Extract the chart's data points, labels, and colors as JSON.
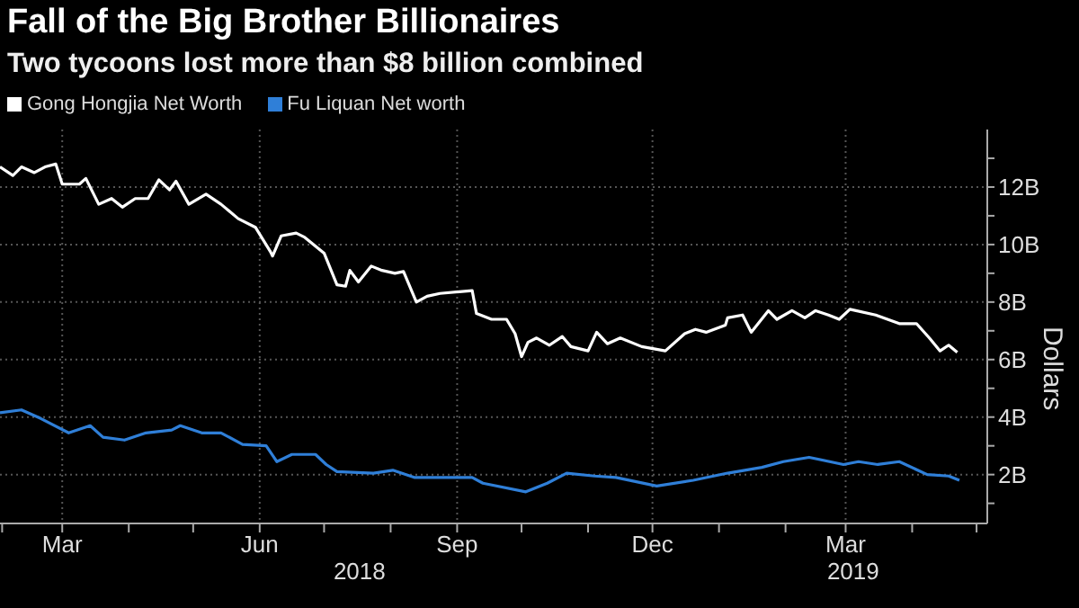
{
  "chart_data": {
    "type": "line",
    "title": "Fall of the Big Brother Billionaires",
    "subtitle": "Two tycoons lost more than $8 billion combined",
    "ylabel": "Dollars",
    "legend": "top left",
    "grid": true,
    "marker": "none",
    "line_style": "solid",
    "xlim": [
      "2018-01-31",
      "2019-05-06"
    ],
    "xticks": [
      {
        "value": "2018-02-01",
        "label": null
      },
      {
        "value": "2018-03-01",
        "label": "Mar"
      },
      {
        "value": "2018-04-01",
        "label": null
      },
      {
        "value": "2018-05-01",
        "label": null
      },
      {
        "value": "2018-06-01",
        "label": "Jun"
      },
      {
        "value": "2018-07-01",
        "label": null
      },
      {
        "value": "2018-08-01",
        "label": null
      },
      {
        "value": "2018-09-01",
        "label": "Sep"
      },
      {
        "value": "2018-10-01",
        "label": null
      },
      {
        "value": "2018-11-01",
        "label": null
      },
      {
        "value": "2018-12-01",
        "label": "Dec"
      },
      {
        "value": "2019-01-01",
        "label": null
      },
      {
        "value": "2019-02-01",
        "label": null
      },
      {
        "value": "2019-03-01",
        "label": "Mar"
      },
      {
        "value": "2019-04-01",
        "label": null
      },
      {
        "value": "2019-05-01",
        "label": null
      }
    ],
    "ylim": [
      0.3,
      14
    ],
    "yticks": [
      {
        "value": 1,
        "label": null
      },
      {
        "value": 2,
        "label": "2B"
      },
      {
        "value": 3,
        "label": null
      },
      {
        "value": 4,
        "label": "4B"
      },
      {
        "value": 5,
        "label": null
      },
      {
        "value": 6,
        "label": "6B"
      },
      {
        "value": 7,
        "label": null
      },
      {
        "value": 8,
        "label": "8B"
      },
      {
        "value": 9,
        "label": null
      },
      {
        "value": 10,
        "label": "10B"
      },
      {
        "value": 11,
        "label": null
      },
      {
        "value": 12,
        "label": "12B"
      },
      {
        "value": 13,
        "label": null
      }
    ],
    "annotations": [
      "2018",
      "2019"
    ],
    "series": [
      {
        "name": "Gong Hongjia Net Worth",
        "color": "#ffffff",
        "x": [
          "2018-01-31",
          "2018-02-06",
          "2018-02-10",
          "2018-02-16",
          "2018-02-21",
          "2018-02-26",
          "2018-03-01",
          "2018-03-09",
          "2018-03-12",
          "2018-03-18",
          "2018-03-24",
          "2018-03-29",
          "2018-04-04",
          "2018-04-10",
          "2018-04-15",
          "2018-04-20",
          "2018-04-23",
          "2018-04-29",
          "2018-05-07",
          "2018-05-14",
          "2018-05-22",
          "2018-05-30",
          "2018-06-06",
          "2018-06-07",
          "2018-06-11",
          "2018-06-18",
          "2018-06-22",
          "2018-07-01",
          "2018-07-07",
          "2018-07-11",
          "2018-07-13",
          "2018-07-17",
          "2018-07-23",
          "2018-07-28",
          "2018-08-03",
          "2018-08-07",
          "2018-08-13",
          "2018-08-18",
          "2018-08-24",
          "2018-09-08",
          "2018-09-10",
          "2018-09-17",
          "2018-09-24",
          "2018-09-28",
          "2018-10-01",
          "2018-10-04",
          "2018-10-08",
          "2018-10-14",
          "2018-10-20",
          "2018-10-24",
          "2018-11-01",
          "2018-11-05",
          "2018-11-10",
          "2018-11-16",
          "2018-11-26",
          "2018-12-07",
          "2018-12-16",
          "2018-12-21",
          "2018-12-26",
          "2019-01-04",
          "2019-01-05",
          "2019-01-12",
          "2019-01-16",
          "2019-01-24",
          "2019-01-28",
          "2019-02-04",
          "2019-02-10",
          "2019-02-15",
          "2019-02-21",
          "2019-02-26",
          "2019-03-03",
          "2019-03-15",
          "2019-03-26",
          "2019-04-03",
          "2019-04-09",
          "2019-04-14",
          "2019-04-18",
          "2019-04-22"
        ],
        "values": [
          12.7,
          12.4,
          12.7,
          12.5,
          12.7,
          12.8,
          12.1,
          12.1,
          12.3,
          11.4,
          11.6,
          11.3,
          11.6,
          11.6,
          12.25,
          11.9,
          12.2,
          11.4,
          11.75,
          11.4,
          10.9,
          10.6,
          9.75,
          9.6,
          10.3,
          10.4,
          10.25,
          9.7,
          8.6,
          8.55,
          9.1,
          8.7,
          9.25,
          9.1,
          9.0,
          9.06,
          8.0,
          8.2,
          8.3,
          8.4,
          7.6,
          7.4,
          7.4,
          6.9,
          6.1,
          6.6,
          6.75,
          6.5,
          6.8,
          6.45,
          6.3,
          6.95,
          6.55,
          6.75,
          6.45,
          6.3,
          6.9,
          7.05,
          6.95,
          7.2,
          7.45,
          7.55,
          6.95,
          7.7,
          7.4,
          7.7,
          7.45,
          7.7,
          7.55,
          7.4,
          7.75,
          7.55,
          7.25,
          7.25,
          6.75,
          6.3,
          6.5,
          6.25
        ]
      },
      {
        "name": "Fu Liquan Net worth",
        "color": "#2f7fd8",
        "x": [
          "2018-01-31",
          "2018-02-10",
          "2018-02-19",
          "2018-03-04",
          "2018-03-14",
          "2018-03-20",
          "2018-03-30",
          "2018-04-09",
          "2018-04-21",
          "2018-04-25",
          "2018-05-05",
          "2018-05-14",
          "2018-05-24",
          "2018-06-04",
          "2018-06-09",
          "2018-06-16",
          "2018-06-27",
          "2018-07-02",
          "2018-07-07",
          "2018-07-24",
          "2018-08-02",
          "2018-08-12",
          "2018-08-28",
          "2018-09-08",
          "2018-09-13",
          "2018-10-03",
          "2018-10-13",
          "2018-10-22",
          "2018-11-04",
          "2018-11-14",
          "2018-12-03",
          "2018-12-20",
          "2019-01-05",
          "2019-01-21",
          "2019-01-31",
          "2019-02-12",
          "2019-02-28",
          "2019-03-07",
          "2019-03-16",
          "2019-03-26",
          "2019-04-08",
          "2019-04-18",
          "2019-04-23"
        ],
        "values": [
          4.15,
          4.25,
          3.95,
          3.45,
          3.7,
          3.3,
          3.2,
          3.45,
          3.55,
          3.7,
          3.45,
          3.45,
          3.05,
          3.0,
          2.45,
          2.7,
          2.7,
          2.35,
          2.1,
          2.05,
          2.15,
          1.9,
          1.9,
          1.9,
          1.7,
          1.4,
          1.7,
          2.05,
          1.95,
          1.9,
          1.6,
          1.8,
          2.05,
          2.25,
          2.45,
          2.6,
          2.35,
          2.45,
          2.35,
          2.45,
          2.0,
          1.95,
          1.8
        ]
      }
    ]
  }
}
